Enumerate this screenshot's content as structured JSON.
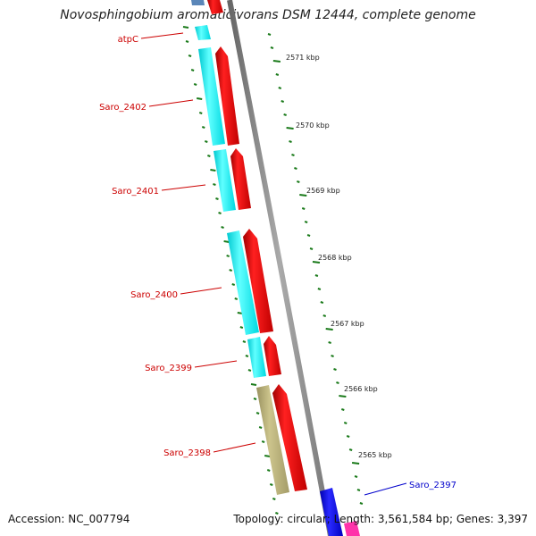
{
  "title": "Novosphingobium aromaticivorans DSM 12444, complete genome",
  "footer": {
    "accession": "Accession: NC_007794",
    "stats": "Topology: circular; Length: 3,561,584 bp; Genes: 3,397"
  },
  "colors": {
    "backbone": "#8a8a8a",
    "forward_gene": "#ff0000",
    "reverse_gene": "#00ffff",
    "olive_gene": "#b8b07a",
    "blue_gene": "#0000ff",
    "pink_gene": "#ff33aa",
    "steel_gene": "#5a86b8",
    "tick": "#1a7a1a",
    "label_red": "#cc0000",
    "label_blue": "#0000cc"
  },
  "gene_labels": [
    {
      "text": "atpC",
      "color": "#cc0000"
    },
    {
      "text": "Saro_2402",
      "color": "#cc0000"
    },
    {
      "text": "Saro_2401",
      "color": "#cc0000"
    },
    {
      "text": "Saro_2400",
      "color": "#cc0000"
    },
    {
      "text": "Saro_2399",
      "color": "#cc0000"
    },
    {
      "text": "Saro_2398",
      "color": "#cc0000"
    },
    {
      "text": "Saro_2397",
      "color": "#0000cc"
    }
  ],
  "kbp_labels": [
    "2571 kbp",
    "2570 kbp",
    "2569 kbp",
    "2568 kbp",
    "2567 kbp",
    "2566 kbp",
    "2565 kbp"
  ]
}
